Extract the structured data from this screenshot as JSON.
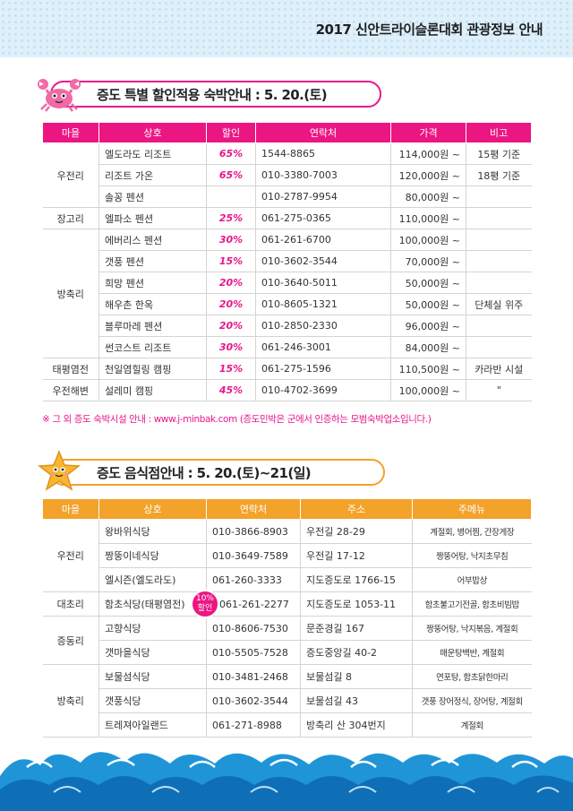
{
  "header": {
    "title": "2017 신안트라이슬론대회 관광정보 안내"
  },
  "lodging": {
    "title": "증도 특별 할인적용 숙박안내 : 5. 20.(토)",
    "columns": [
      "마을",
      "상호",
      "할인",
      "연락처",
      "가격",
      "비고"
    ],
    "areas": [
      "우전리",
      "장고리",
      "방축리",
      "태평염전",
      "우전해변"
    ],
    "rows": [
      {
        "name": "엘도라도 리조트",
        "discount": "65%",
        "phone": "1544-8865",
        "price": "114,000원 ~",
        "note": "15평 기준"
      },
      {
        "name": "리조트 가온",
        "discount": "65%",
        "phone": "010-3380-7003",
        "price": "120,000원 ~",
        "note": "18평 기준"
      },
      {
        "name": "솔꽁 펜션",
        "discount": "",
        "phone": "010-2787-9954",
        "price": "80,000원 ~",
        "note": ""
      },
      {
        "name": "엘파소 펜션",
        "discount": "25%",
        "phone": "061-275-0365",
        "price": "110,000원 ~",
        "note": ""
      },
      {
        "name": "에버리스 펜션",
        "discount": "30%",
        "phone": "061-261-6700",
        "price": "100,000원 ~",
        "note": ""
      },
      {
        "name": "갯풍 펜션",
        "discount": "15%",
        "phone": "010-3602-3544",
        "price": "70,000원 ~",
        "note": ""
      },
      {
        "name": "희망 펜션",
        "discount": "20%",
        "phone": "010-3640-5011",
        "price": "50,000원 ~",
        "note": ""
      },
      {
        "name": "해우촌 한옥",
        "discount": "20%",
        "phone": "010-8605-1321",
        "price": "50,000원 ~",
        "note": "단체실 위주"
      },
      {
        "name": "블루마레 펜션",
        "discount": "20%",
        "phone": "010-2850-2330",
        "price": "96,000원 ~",
        "note": ""
      },
      {
        "name": "썬코스트 리조트",
        "discount": "30%",
        "phone": "061-246-3001",
        "price": "84,000원 ~",
        "note": ""
      },
      {
        "name": "천일염힐링 캠핑",
        "discount": "15%",
        "phone": "061-275-1596",
        "price": "110,500원 ~",
        "note": "카라반 시설"
      },
      {
        "name": "설레미 캠핑",
        "discount": "45%",
        "phone": "010-4702-3699",
        "price": "100,000원 ~",
        "note": "\""
      }
    ],
    "footnote": "※ 그 외 증도 숙박시설 안내 : www.j-minbak.com (증도민박은 군에서 인증하는 모범숙박업소입니다.)"
  },
  "restaurants": {
    "title": "증도 음식점안내 : 5. 20.(토)~21(일)",
    "columns": [
      "마을",
      "상호",
      "연락처",
      "주소",
      "주메뉴"
    ],
    "areas": [
      "우전리",
      "대초리",
      "증동리",
      "방축리"
    ],
    "badge": {
      "line1": "10%",
      "line2": "할인"
    },
    "rows": [
      {
        "name": "왕바위식당",
        "phone": "010-3866-8903",
        "address": "우전길 28-29",
        "menu": "계절회, 병어찜, 간장게장"
      },
      {
        "name": "짱뚱이네식당",
        "phone": "010-3649-7589",
        "address": "우전길 17-12",
        "menu": "짱뚱어탕, 낙지초무침"
      },
      {
        "name": "엘시즌(엘도라도)",
        "phone": "061-260-3333",
        "address": "지도증도로 1766-15",
        "menu": "어부밥상"
      },
      {
        "name": "함초식당(태평염전)",
        "phone": "061-261-2277",
        "address": "지도증도로 1053-11",
        "menu": "함초불고기전골, 함초비빔밥"
      },
      {
        "name": "고향식당",
        "phone": "010-8606-7530",
        "address": "문준경길 167",
        "menu": "짱뚱어탕, 낙지볶음, 계절회"
      },
      {
        "name": "갯마을식당",
        "phone": "010-5505-7528",
        "address": "증도중앙길 40-2",
        "menu": "매운탕백반, 계절회"
      },
      {
        "name": "보물섬식당",
        "phone": "010-3481-2468",
        "address": "보물섬길 8",
        "menu": "연포탕, 함초닭한마리"
      },
      {
        "name": "갯풍식당",
        "phone": "010-3602-3544",
        "address": "보물섬길 43",
        "menu": "갯풍 장어정식, 장어탕, 계절회"
      },
      {
        "name": "트레져아일랜드",
        "phone": "061-271-8988",
        "address": "방축리 산 304번지",
        "menu": "계절회"
      }
    ]
  },
  "colors": {
    "lodging_accent": "#ec1682",
    "restaurant_accent": "#f3a22a",
    "wave": "#1f95d8"
  }
}
